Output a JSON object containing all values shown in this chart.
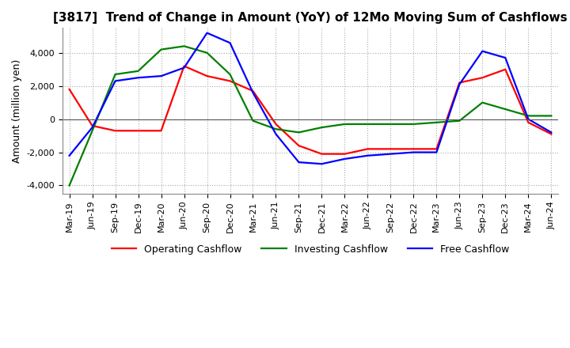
{
  "title": "[3817]  Trend of Change in Amount (YoY) of 12Mo Moving Sum of Cashflows",
  "ylabel": "Amount (million yen)",
  "ylim": [
    -4500,
    5500
  ],
  "yticks": [
    -4000,
    -2000,
    0,
    2000,
    4000
  ],
  "x_labels": [
    "Mar-19",
    "Jun-19",
    "Sep-19",
    "Dec-19",
    "Mar-20",
    "Jun-20",
    "Sep-20",
    "Dec-20",
    "Mar-21",
    "Jun-21",
    "Sep-21",
    "Dec-21",
    "Mar-22",
    "Jun-22",
    "Sep-22",
    "Dec-22",
    "Mar-23",
    "Jun-23",
    "Sep-23",
    "Dec-23",
    "Mar-24",
    "Jun-24"
  ],
  "operating": [
    1800,
    -400,
    -700,
    -700,
    -700,
    3200,
    2600,
    2300,
    1700,
    -300,
    -1600,
    -2100,
    -2100,
    -1800,
    -1800,
    -1800,
    -1800,
    2200,
    2500,
    3000,
    -200,
    -900
  ],
  "investing": [
    -4000,
    -700,
    2700,
    2900,
    4200,
    4400,
    4000,
    2700,
    -100,
    -600,
    -800,
    -500,
    -300,
    -300,
    -300,
    -300,
    -200,
    -100,
    1000,
    600,
    200,
    200
  ],
  "free": [
    -2200,
    -500,
    2300,
    2500,
    2600,
    3100,
    5200,
    4600,
    1600,
    -900,
    -2600,
    -2700,
    -2400,
    -2200,
    -2100,
    -2000,
    -2000,
    2100,
    4100,
    3700,
    0,
    -800
  ],
  "line_colors": {
    "operating": "#ff0000",
    "investing": "#008000",
    "free": "#0000ff"
  },
  "legend_labels": [
    "Operating Cashflow",
    "Investing Cashflow",
    "Free Cashflow"
  ],
  "background_color": "#ffffff",
  "grid_color": "#aaaaaa",
  "title_fontsize": 11,
  "label_fontsize": 9,
  "tick_fontsize": 8
}
